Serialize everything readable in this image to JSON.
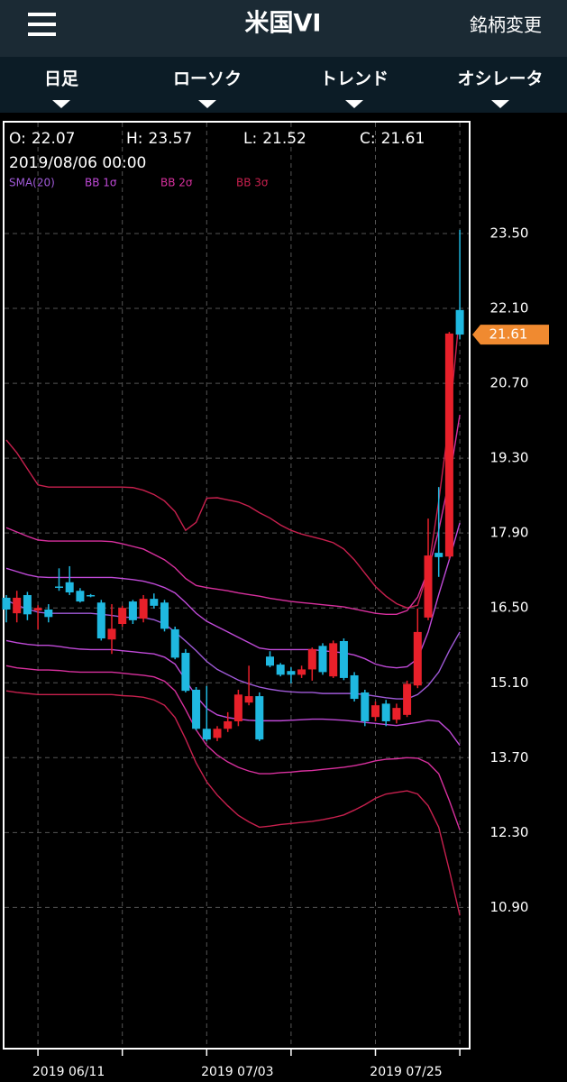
{
  "header": {
    "title": "米国VI",
    "action": "銘柄変更"
  },
  "tabs": [
    "日足",
    "ローソク",
    "トレンド",
    "オシレータ"
  ],
  "chart_data": {
    "type": "candlestick",
    "ohlc_labels": [
      "O:",
      "H:",
      "L:",
      "C:"
    ],
    "selected_date": "2019/08/06 00:00",
    "categories": [
      null,
      null,
      null,
      "2019 06/11",
      null,
      null,
      null,
      null,
      null,
      null,
      null,
      null,
      null,
      null,
      null,
      null,
      null,
      null,
      null,
      "2019 07/03",
      null,
      null,
      null,
      null,
      null,
      null,
      null,
      null,
      null,
      null,
      null,
      null,
      null,
      null,
      null,
      "2019 07/25",
      null,
      null,
      null,
      null,
      null,
      null,
      null,
      null
    ],
    "open": [
      16.69,
      16.4,
      16.74,
      16.45,
      16.47,
      16.9,
      16.98,
      16.82,
      16.74,
      16.6,
      15.91,
      16.2,
      16.62,
      16.3,
      16.67,
      16.6,
      16.1,
      15.66,
      14.97,
      14.24,
      14.07,
      14.24,
      14.38,
      14.73,
      14.85,
      15.59,
      15.44,
      15.32,
      15.25,
      15.35,
      15.79,
      15.22,
      15.88,
      15.24,
      14.92,
      14.46,
      14.71,
      14.41,
      14.5,
      15.05,
      16.32,
      17.53,
      17.46,
      22.07
    ],
    "high": [
      16.74,
      16.82,
      16.8,
      16.55,
      16.57,
      17.24,
      17.28,
      16.87,
      16.76,
      16.65,
      16.57,
      16.54,
      16.65,
      16.74,
      16.77,
      16.65,
      16.15,
      15.73,
      15.02,
      15.04,
      14.29,
      14.55,
      14.97,
      15.42,
      14.92,
      15.69,
      15.47,
      15.39,
      15.42,
      15.76,
      15.84,
      15.89,
      15.93,
      15.3,
      14.97,
      14.75,
      14.78,
      14.71,
      15.14,
      16.49,
      18.17,
      18.76,
      21.66,
      23.57
    ],
    "low": [
      16.23,
      16.23,
      16.27,
      16.1,
      16.23,
      16.82,
      16.74,
      16.6,
      16.7,
      15.89,
      15.64,
      16.15,
      16.2,
      16.23,
      16.49,
      16.06,
      15.54,
      14.92,
      14.21,
      14.01,
      14.01,
      14.18,
      14.29,
      14.68,
      14.01,
      15.39,
      15.22,
      15.09,
      15.19,
      15.14,
      15.25,
      15.19,
      15.15,
      14.75,
      14.29,
      14.38,
      14.29,
      14.34,
      14.46,
      15.0,
      16.27,
      17.08,
      17.41,
      21.52
    ],
    "close": [
      16.47,
      16.69,
      16.38,
      16.5,
      16.33,
      16.88,
      16.79,
      16.62,
      16.72,
      15.93,
      16.11,
      16.5,
      16.27,
      16.67,
      16.54,
      16.11,
      15.57,
      14.95,
      14.24,
      14.04,
      14.24,
      14.38,
      14.88,
      14.85,
      14.04,
      15.42,
      15.25,
      15.25,
      15.35,
      15.73,
      15.3,
      15.84,
      15.19,
      14.8,
      14.38,
      14.68,
      14.38,
      14.63,
      15.08,
      16.05,
      17.48,
      17.45,
      21.63,
      21.61
    ],
    "up_color": "#e8202a",
    "down_color": "#1fb8e0",
    "sma": {
      "name": "SMA(20)",
      "color": "#a05ad8",
      "values": [
        16.65,
        16.55,
        16.48,
        16.42,
        16.4,
        16.4,
        16.4,
        16.4,
        16.4,
        16.38,
        16.36,
        16.33,
        16.32,
        16.32,
        16.28,
        16.2,
        16.05,
        15.88,
        15.7,
        15.5,
        15.35,
        15.25,
        15.15,
        15.08,
        15.02,
        14.98,
        14.95,
        14.93,
        14.92,
        14.92,
        14.9,
        14.9,
        14.9,
        14.9,
        14.88,
        14.85,
        14.82,
        14.8,
        14.8,
        14.88,
        15.05,
        15.3,
        15.7,
        16.05
      ]
    },
    "bands": [
      {
        "name": "BB 1σ",
        "color": "#c04ad8",
        "upper": [
          17.24,
          17.18,
          17.12,
          17.08,
          17.07,
          17.07,
          17.07,
          17.07,
          17.07,
          17.07,
          17.07,
          17.05,
          17.03,
          17.0,
          16.95,
          16.88,
          16.78,
          16.6,
          16.4,
          16.25,
          16.15,
          16.05,
          15.95,
          15.85,
          15.75,
          15.72,
          15.72,
          15.72,
          15.72,
          15.72,
          15.7,
          15.68,
          15.66,
          15.62,
          15.55,
          15.45,
          15.4,
          15.38,
          15.4,
          15.55,
          16.05,
          16.75,
          17.4,
          18.09
        ],
        "lower": [
          15.89,
          15.85,
          15.82,
          15.8,
          15.8,
          15.78,
          15.75,
          15.73,
          15.72,
          15.72,
          15.72,
          15.7,
          15.68,
          15.66,
          15.64,
          15.58,
          15.45,
          15.15,
          14.85,
          14.62,
          14.5,
          14.45,
          14.42,
          14.4,
          14.39,
          14.39,
          14.39,
          14.4,
          14.41,
          14.42,
          14.42,
          14.41,
          14.4,
          14.38,
          14.36,
          14.34,
          14.32,
          14.3,
          14.33,
          14.36,
          14.4,
          14.38,
          14.2,
          13.93
        ]
      },
      {
        "name": "BB 2σ",
        "color": "#d8309e",
        "upper": [
          18.0,
          17.92,
          17.84,
          17.77,
          17.75,
          17.75,
          17.75,
          17.75,
          17.75,
          17.75,
          17.74,
          17.7,
          17.65,
          17.6,
          17.5,
          17.4,
          17.25,
          17.05,
          16.92,
          16.88,
          16.85,
          16.82,
          16.78,
          16.75,
          16.72,
          16.68,
          16.65,
          16.62,
          16.6,
          16.58,
          16.56,
          16.54,
          16.52,
          16.48,
          16.44,
          16.4,
          16.38,
          16.38,
          16.45,
          16.7,
          17.2,
          17.95,
          18.9,
          20.11
        ],
        "lower": [
          15.42,
          15.38,
          15.36,
          15.34,
          15.34,
          15.33,
          15.31,
          15.3,
          15.3,
          15.3,
          15.3,
          15.28,
          15.26,
          15.24,
          15.21,
          15.13,
          14.95,
          14.6,
          14.22,
          13.93,
          13.75,
          13.62,
          13.52,
          13.45,
          13.4,
          13.4,
          13.42,
          13.43,
          13.45,
          13.46,
          13.48,
          13.5,
          13.52,
          13.55,
          13.59,
          13.64,
          13.67,
          13.68,
          13.7,
          13.69,
          13.6,
          13.4,
          12.9,
          12.35
        ]
      },
      {
        "name": "BB 3σ",
        "color": "#c8204e",
        "upper": [
          19.64,
          19.4,
          19.1,
          18.8,
          18.76,
          18.76,
          18.76,
          18.76,
          18.76,
          18.76,
          18.76,
          18.76,
          18.75,
          18.7,
          18.62,
          18.5,
          18.3,
          17.95,
          18.1,
          18.55,
          18.56,
          18.52,
          18.48,
          18.4,
          18.28,
          18.18,
          18.05,
          17.95,
          17.88,
          17.83,
          17.78,
          17.72,
          17.6,
          17.4,
          17.15,
          16.9,
          16.72,
          16.58,
          16.5,
          16.55,
          17.2,
          18.5,
          20.0,
          22.05
        ],
        "lower": [
          14.95,
          14.92,
          14.9,
          14.88,
          14.88,
          14.88,
          14.88,
          14.88,
          14.88,
          14.88,
          14.88,
          14.86,
          14.85,
          14.83,
          14.78,
          14.68,
          14.45,
          14.05,
          13.6,
          13.25,
          13.0,
          12.8,
          12.62,
          12.5,
          12.4,
          12.42,
          12.45,
          12.47,
          12.49,
          12.51,
          12.54,
          12.58,
          12.63,
          12.72,
          12.82,
          12.94,
          13.02,
          13.05,
          13.08,
          13.02,
          12.8,
          12.4,
          11.6,
          10.75
        ]
      }
    ],
    "ylim": [
      8.26,
      25.59
    ],
    "yticks": [
      {
        "value": 23.5,
        "label": "23.50"
      },
      {
        "value": 22.1,
        "label": "22.10"
      },
      {
        "value": 20.7,
        "label": "20.70"
      },
      {
        "value": 19.3,
        "label": "19.30"
      },
      {
        "value": 17.9,
        "label": "17.90"
      },
      {
        "value": 16.5,
        "label": "16.50"
      },
      {
        "value": 15.1,
        "label": "15.10"
      },
      {
        "value": 13.7,
        "label": "13.70"
      },
      {
        "value": 12.3,
        "label": "12.30"
      },
      {
        "value": 10.9,
        "label": "10.90"
      }
    ],
    "last_price_color": "#f08a30",
    "grid": true
  }
}
